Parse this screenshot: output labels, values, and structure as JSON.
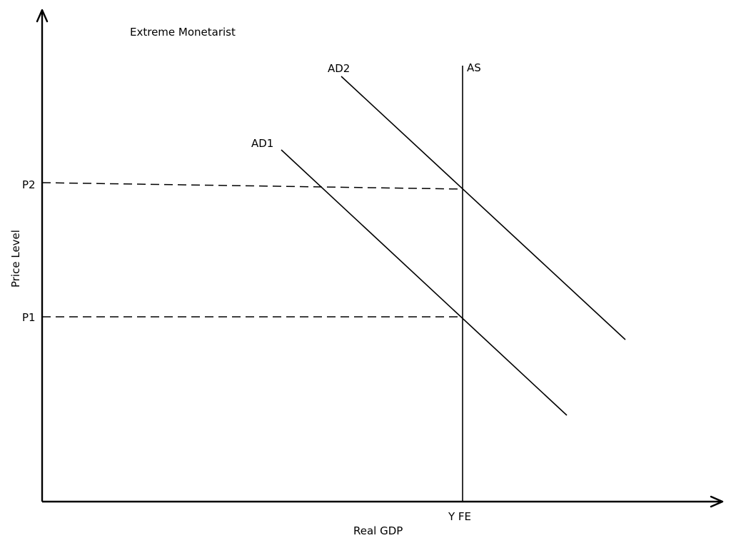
{
  "diagram": {
    "title": "Extreme Monetarist",
    "x_axis_label": "Real GDP",
    "y_axis_label": "Price Level",
    "labels": {
      "ad1": "AD1",
      "ad2": "AD2",
      "as": "AS",
      "p1": "P1",
      "p2": "P2",
      "yfe": "Y FE"
    }
  }
}
